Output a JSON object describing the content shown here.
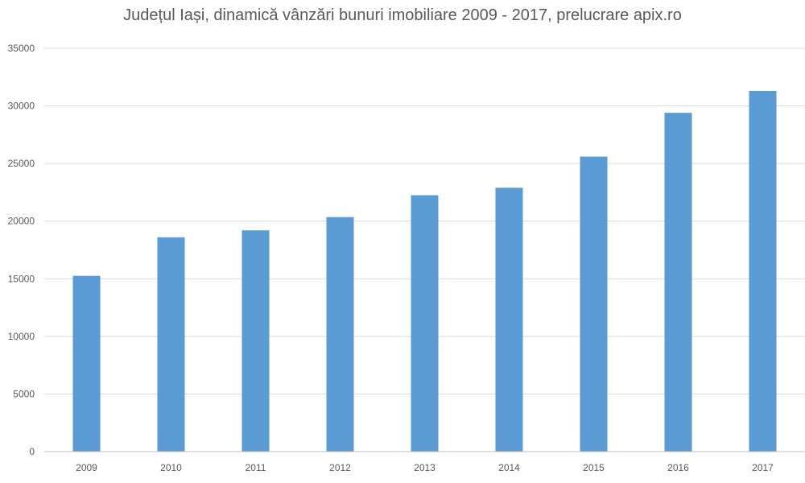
{
  "chart_data": {
    "type": "bar",
    "title": "Județul Iași, dinamică vânzări bunuri imobiliare 2009 - 2017, prelucrare apix.ro",
    "categories": [
      "2009",
      "2010",
      "2011",
      "2012",
      "2013",
      "2014",
      "2015",
      "2016",
      "2017"
    ],
    "values": [
      15250,
      18600,
      19200,
      20350,
      22250,
      22900,
      25600,
      29400,
      31300
    ],
    "ylim": [
      0,
      35000
    ],
    "yticks": [
      0,
      5000,
      10000,
      15000,
      20000,
      25000,
      30000,
      35000
    ],
    "ytick_labels": [
      "0",
      "5000",
      "10000",
      "15000",
      "20000",
      "25000",
      "30000",
      "35000"
    ],
    "grid": true,
    "legend": "none",
    "bar_color": "#5b9bd5",
    "grid_color": "#d9d9d9",
    "axis_color": "#bfbfbf"
  }
}
